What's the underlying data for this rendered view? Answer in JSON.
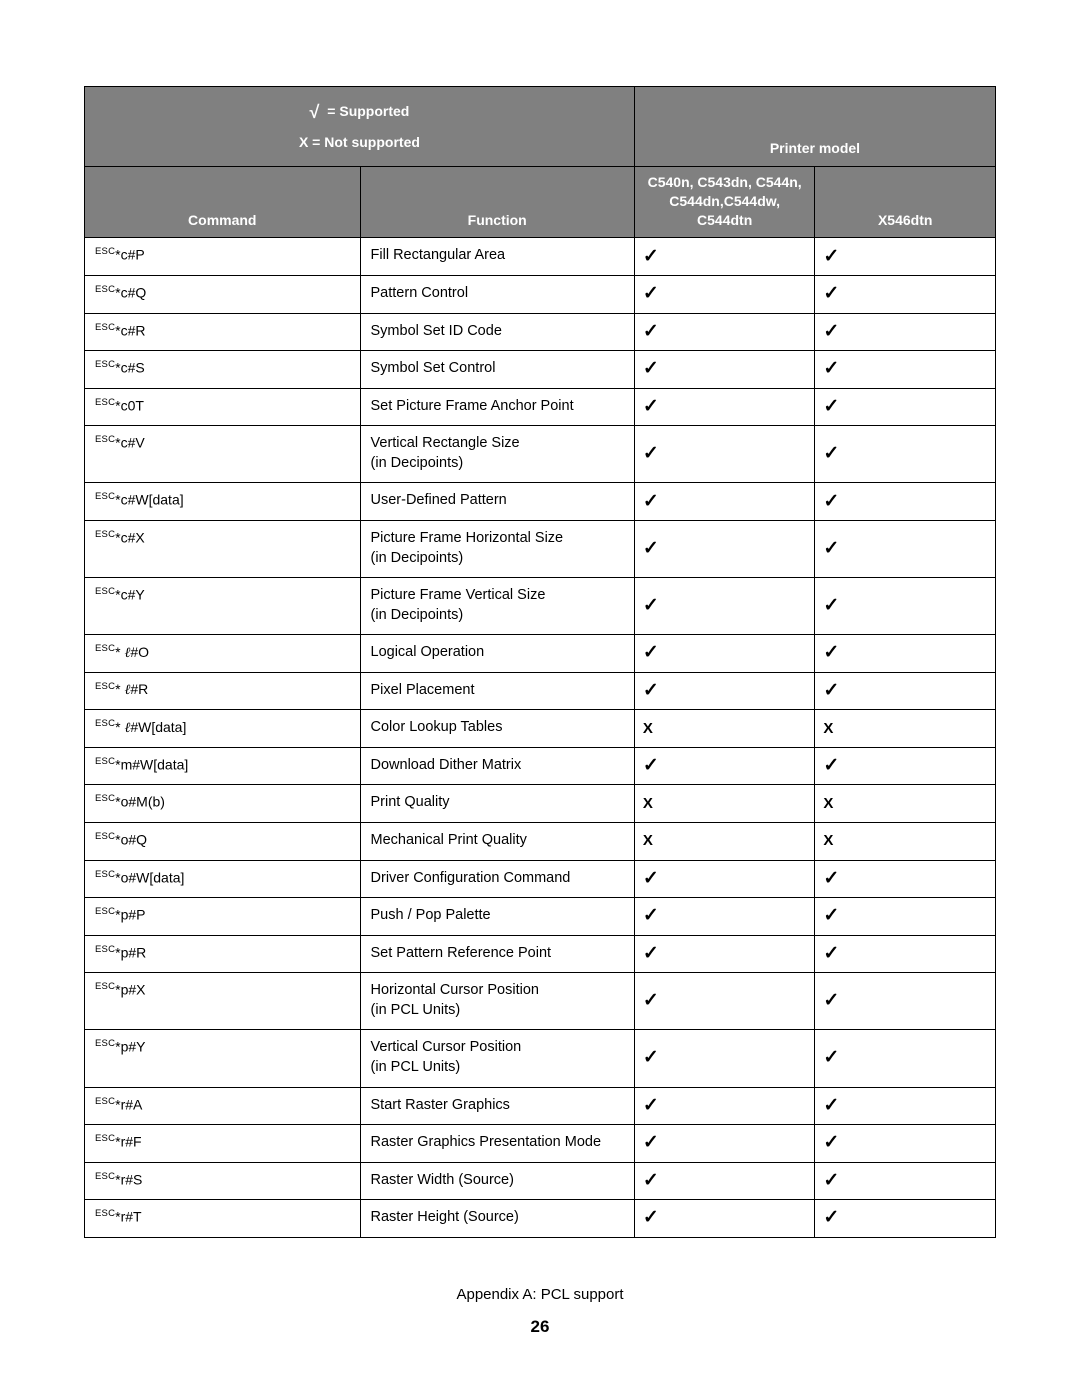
{
  "legend": {
    "supported": "= Supported",
    "not_supported": "X = Not supported",
    "check_glyph": "√"
  },
  "header": {
    "printer_model": "Printer model",
    "command": "Command",
    "function": "Function",
    "model_a": "C540n, C543dn, C544n, C544dn,C544dw, C544dtn",
    "model_b": "X546dtn"
  },
  "marks": {
    "yes": "✓",
    "no": "X"
  },
  "rows": [
    {
      "cmd_suffix": "c#P",
      "fn": "Fill Rectangular Area",
      "a": "yes",
      "b": "yes"
    },
    {
      "cmd_suffix": "c#Q",
      "fn": "Pattern Control",
      "a": "yes",
      "b": "yes"
    },
    {
      "cmd_suffix": "c#R",
      "fn": "Symbol Set ID Code",
      "a": "yes",
      "b": "yes"
    },
    {
      "cmd_suffix": "c#S",
      "fn": "Symbol Set Control",
      "a": "yes",
      "b": "yes"
    },
    {
      "cmd_suffix": "c0T",
      "fn": "Set Picture Frame Anchor Point",
      "a": "yes",
      "b": "yes"
    },
    {
      "cmd_suffix": "c#V",
      "fn": "Vertical Rectangle Size\n(in Decipoints)",
      "a": "yes",
      "b": "yes"
    },
    {
      "cmd_suffix": "c#W[data]",
      "fn": "User-Defined Pattern",
      "a": "yes",
      "b": "yes"
    },
    {
      "cmd_suffix": "c#X",
      "fn": "Picture Frame Horizontal Size\n(in Decipoints)",
      "a": "yes",
      "b": "yes"
    },
    {
      "cmd_suffix": "c#Y",
      "fn": "Picture Frame Vertical Size\n(in Decipoints)",
      "a": "yes",
      "b": "yes"
    },
    {
      "cmd_suffix": "ℓ#O",
      "script_l": true,
      "sp": true,
      "fn": "Logical Operation",
      "a": "yes",
      "b": "yes"
    },
    {
      "cmd_suffix": "ℓ#R",
      "script_l": true,
      "sp": true,
      "fn": "Pixel Placement",
      "a": "yes",
      "b": "yes"
    },
    {
      "cmd_suffix": "ℓ#W[data]",
      "script_l": true,
      "sp": true,
      "fn": "Color Lookup Tables",
      "a": "no",
      "b": "no"
    },
    {
      "cmd_suffix": "m#W[data]",
      "fn": "Download Dither Matrix",
      "a": "yes",
      "b": "yes"
    },
    {
      "cmd_suffix": "o#M(b)",
      "fn": "Print Quality",
      "a": "no",
      "b": "no"
    },
    {
      "cmd_suffix": "o#Q",
      "fn": "Mechanical Print Quality",
      "a": "no",
      "b": "no"
    },
    {
      "cmd_suffix": "o#W[data]",
      "fn": "Driver Configuration Command",
      "a": "yes",
      "b": "yes"
    },
    {
      "cmd_suffix": "p#P",
      "fn": "Push / Pop Palette",
      "a": "yes",
      "b": "yes"
    },
    {
      "cmd_suffix": "p#R",
      "fn": "Set Pattern Reference Point",
      "a": "yes",
      "b": "yes"
    },
    {
      "cmd_suffix": "p#X",
      "fn": "Horizontal Cursor Position\n(in PCL Units)",
      "a": "yes",
      "b": "yes"
    },
    {
      "cmd_suffix": "p#Y",
      "fn": "Vertical Cursor Position\n(in PCL Units)",
      "a": "yes",
      "b": "yes"
    },
    {
      "cmd_suffix": "r#A",
      "fn": "Start Raster Graphics",
      "a": "yes",
      "b": "yes"
    },
    {
      "cmd_suffix": "r#F",
      "fn": "Raster Graphics Presentation Mode",
      "a": "yes",
      "b": "yes"
    },
    {
      "cmd_suffix": "r#S",
      "fn": "Raster Width (Source)",
      "a": "yes",
      "b": "yes"
    },
    {
      "cmd_suffix": "r#T",
      "fn": "Raster Height (Source)",
      "a": "yes",
      "b": "yes"
    }
  ],
  "footer": {
    "caption": "Appendix A: PCL support",
    "pagenum": "26"
  },
  "esc_prefix": "ESC",
  "star": "*"
}
